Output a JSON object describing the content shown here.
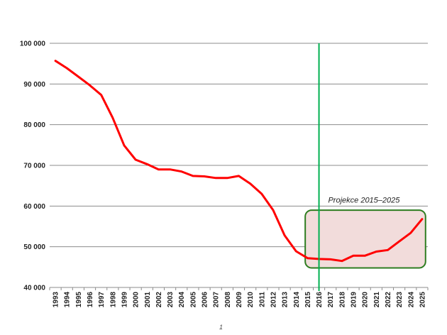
{
  "chart_data": {
    "type": "line",
    "title": "",
    "xlabel": "",
    "ylabel": "",
    "x": [
      1993,
      1994,
      1995,
      1996,
      1997,
      1998,
      1999,
      2000,
      2001,
      2002,
      2003,
      2004,
      2005,
      2006,
      2007,
      2008,
      2009,
      2010,
      2011,
      2012,
      2013,
      2014,
      2015,
      2016,
      2017,
      2018,
      2019,
      2020,
      2021,
      2022,
      2023,
      2024,
      2025
    ],
    "series": [
      {
        "values": [
          95700,
          93900,
          91800,
          89700,
          87300,
          81700,
          74900,
          71400,
          70300,
          69000,
          69000,
          68500,
          67400,
          67300,
          66900,
          66900,
          67400,
          65500,
          63000,
          59000,
          52800,
          48900,
          47200,
          47000,
          46900,
          46500,
          47800,
          47800,
          48800,
          49200,
          51300,
          53400,
          56800
        ],
        "color": "#ff0000"
      }
    ],
    "ylim": [
      40000,
      100000
    ],
    "yticks": [
      40000,
      50000,
      60000,
      70000,
      80000,
      90000,
      100000
    ],
    "ytick_labels": [
      "40 000",
      "50 000",
      "60 000",
      "70 000",
      "80 000",
      "90 000",
      "100 000"
    ],
    "grid": true,
    "vline": {
      "x": 2016,
      "color": "#00b050"
    },
    "highlight_region": {
      "x_range": [
        2014.8,
        2025.3
      ],
      "y_range": [
        44800,
        59000
      ],
      "fill": "#f2dcdb",
      "border": "#2e7d20"
    },
    "annotation": {
      "text": "Projekce 2015–2025",
      "x": 2016.8,
      "y": 61500
    }
  },
  "page_number": "1"
}
